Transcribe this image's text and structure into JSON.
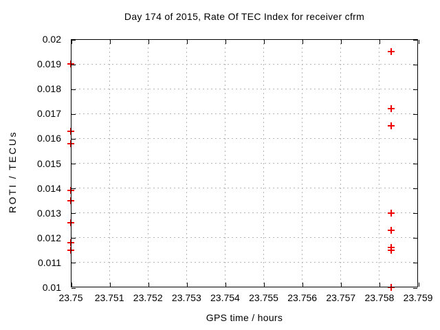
{
  "page": {
    "background": "#ffffff"
  },
  "chart_data": {
    "type": "scatter",
    "title": "Day 174 of 2015, Rate Of TEC Index for receiver cfrm",
    "xlabel": "GPS time / hours",
    "ylabel": "ROTI / TECUs",
    "xlim": [
      23.75,
      23.759
    ],
    "ylim": [
      0.01,
      0.02
    ],
    "grid": true,
    "legend": "none",
    "border_color": "#000000",
    "grid_color": "#b4b4b4",
    "marker": {
      "shape": "plus",
      "color": "#ee0000",
      "size": 10
    },
    "x_ticks": [
      {
        "value": 23.75,
        "label": "23.75"
      },
      {
        "value": 23.751,
        "label": "23.751"
      },
      {
        "value": 23.752,
        "label": "23.752"
      },
      {
        "value": 23.753,
        "label": "23.753"
      },
      {
        "value": 23.754,
        "label": "23.754"
      },
      {
        "value": 23.755,
        "label": "23.755"
      },
      {
        "value": 23.756,
        "label": "23.756"
      },
      {
        "value": 23.757,
        "label": "23.757"
      },
      {
        "value": 23.758,
        "label": "23.758"
      },
      {
        "value": 23.759,
        "label": "23.759"
      }
    ],
    "y_ticks": [
      {
        "value": 0.01,
        "label": "0.01"
      },
      {
        "value": 0.011,
        "label": "0.011"
      },
      {
        "value": 0.012,
        "label": "0.012"
      },
      {
        "value": 0.013,
        "label": "0.013"
      },
      {
        "value": 0.014,
        "label": "0.014"
      },
      {
        "value": 0.015,
        "label": "0.015"
      },
      {
        "value": 0.016,
        "label": "0.016"
      },
      {
        "value": 0.017,
        "label": "0.017"
      },
      {
        "value": 0.018,
        "label": "0.018"
      },
      {
        "value": 0.019,
        "label": "0.019"
      },
      {
        "value": 0.02,
        "label": "0.02"
      }
    ],
    "series": [
      {
        "name": "ROTI",
        "points": [
          [
            23.75,
            0.019
          ],
          [
            23.75,
            0.0163
          ],
          [
            23.75,
            0.0158
          ],
          [
            23.75,
            0.0139
          ],
          [
            23.75,
            0.0135
          ],
          [
            23.75,
            0.0126
          ],
          [
            23.75,
            0.0118
          ],
          [
            23.75,
            0.0115
          ],
          [
            23.7583,
            0.0195
          ],
          [
            23.7583,
            0.0172
          ],
          [
            23.7583,
            0.0165
          ],
          [
            23.7583,
            0.013
          ],
          [
            23.7583,
            0.0123
          ],
          [
            23.7583,
            0.0116
          ],
          [
            23.7583,
            0.0115
          ],
          [
            23.7583,
            0.01
          ]
        ]
      }
    ]
  }
}
